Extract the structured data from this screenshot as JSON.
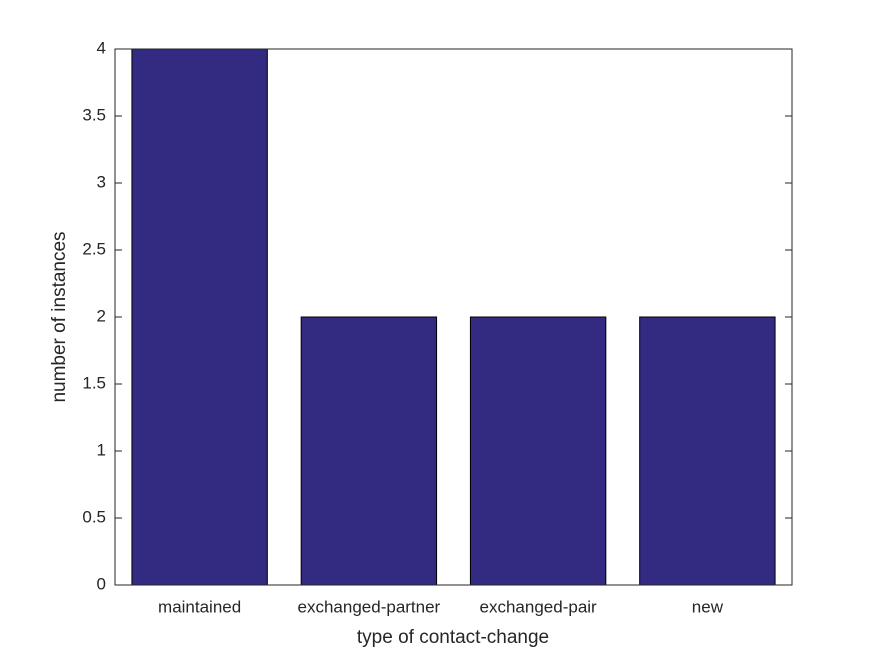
{
  "chart_data": {
    "type": "bar",
    "xlabel": "type of contact-change",
    "ylabel": "number of instances",
    "categories": [
      "maintained",
      "exchanged-partner",
      "exchanged-pair",
      "new"
    ],
    "values": [
      4,
      2,
      2,
      2
    ],
    "color": "#332a82",
    "ylim": [
      0,
      4
    ],
    "yticks": [
      0,
      0.5,
      1,
      1.5,
      2,
      2.5,
      3,
      3.5,
      4
    ],
    "grid": false
  }
}
